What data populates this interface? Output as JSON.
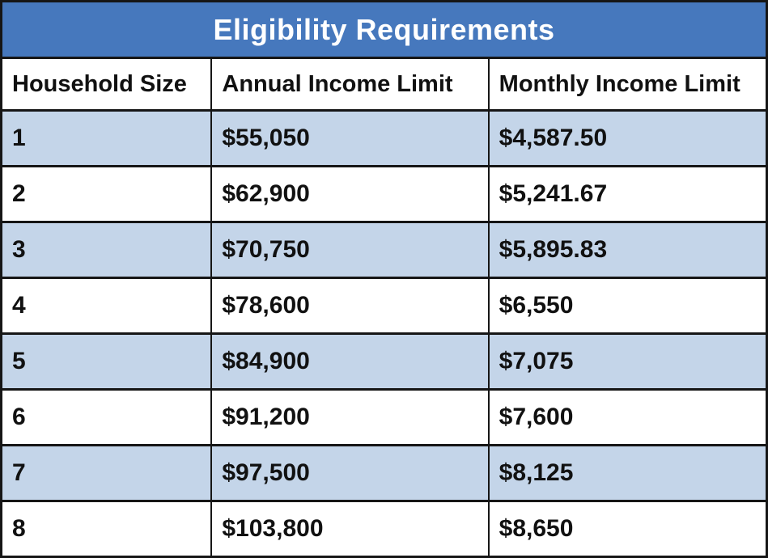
{
  "title": "Eligibility Requirements",
  "colors": {
    "title_bg": "#4678bd",
    "title_text": "#ffffff",
    "alt_row_bg": "#c4d5e9",
    "row_bg": "#ffffff",
    "border": "#161616",
    "cell_text": "#111111"
  },
  "table": {
    "columns": [
      "Household Size",
      "Annual Income Limit",
      "Monthly Income Limit"
    ],
    "rows": [
      {
        "household_size": "1",
        "annual": "$55,050",
        "monthly": "$4,587.50"
      },
      {
        "household_size": "2",
        "annual": "$62,900",
        "monthly": "$5,241.67"
      },
      {
        "household_size": "3",
        "annual": "$70,750",
        "monthly": "$5,895.83"
      },
      {
        "household_size": "4",
        "annual": "$78,600",
        "monthly": "$6,550"
      },
      {
        "household_size": "5",
        "annual": "$84,900",
        "monthly": "$7,075"
      },
      {
        "household_size": "6",
        "annual": "$91,200",
        "monthly": "$7,600"
      },
      {
        "household_size": "7",
        "annual": "$97,500",
        "monthly": "$8,125"
      },
      {
        "household_size": "8",
        "annual": "$103,800",
        "monthly": "$8,650"
      }
    ]
  },
  "chart_data": {
    "type": "table",
    "title": "Eligibility Requirements",
    "columns": [
      "Household Size",
      "Annual Income Limit",
      "Monthly Income Limit"
    ],
    "rows": [
      [
        "1",
        "$55,050",
        "$4,587.50"
      ],
      [
        "2",
        "$62,900",
        "$5,241.67"
      ],
      [
        "3",
        "$70,750",
        "$5,895.83"
      ],
      [
        "4",
        "$78,600",
        "$6,550"
      ],
      [
        "5",
        "$84,900",
        "$7,075"
      ],
      [
        "6",
        "$91,200",
        "$7,600"
      ],
      [
        "7",
        "$97,500",
        "$8,125"
      ],
      [
        "8",
        "$103,800",
        "$8,650"
      ]
    ],
    "annual_income_limit_values": [
      55050,
      62900,
      70750,
      78600,
      84900,
      91200,
      97500,
      103800
    ],
    "monthly_income_limit_values": [
      4587.5,
      5241.67,
      5895.83,
      6550,
      7075,
      7600,
      8125,
      8650
    ],
    "household_sizes": [
      1,
      2,
      3,
      4,
      5,
      6,
      7,
      8
    ]
  }
}
